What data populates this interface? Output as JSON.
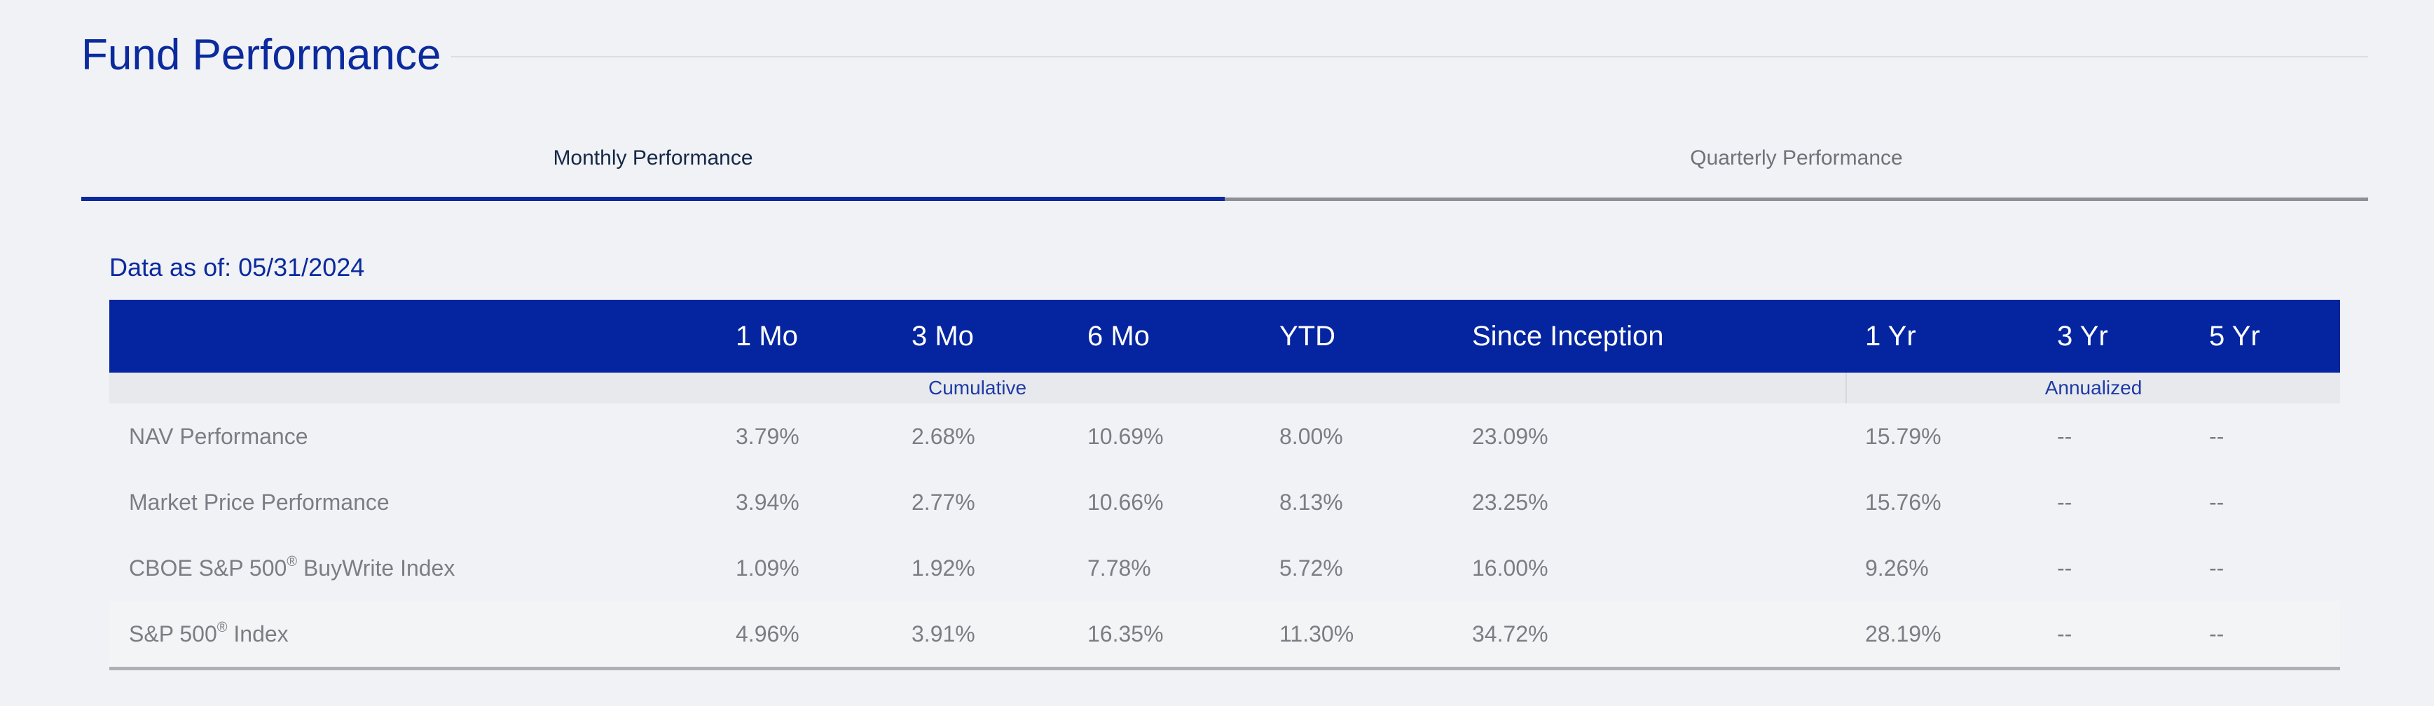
{
  "title": "Fund Performance",
  "tabs": [
    {
      "label": "Monthly Performance",
      "active": true
    },
    {
      "label": "Quarterly Performance",
      "active": false
    }
  ],
  "as_of": "Data as of: 05/31/2024",
  "table": {
    "columns": [
      "",
      "1 Mo",
      "3 Mo",
      "6 Mo",
      "YTD",
      "Since Inception",
      "1 Yr",
      "3 Yr",
      "5 Yr"
    ],
    "groups": {
      "cumulative": "Cumulative",
      "annualized": "Annualized"
    },
    "rows": [
      {
        "name": "NAV Performance",
        "sup": "",
        "suffix": "",
        "values": [
          "3.79%",
          "2.68%",
          "10.69%",
          "8.00%",
          "23.09%",
          "15.79%",
          "--",
          "--"
        ]
      },
      {
        "name": "Market Price Performance",
        "sup": "",
        "suffix": "",
        "values": [
          "3.94%",
          "2.77%",
          "10.66%",
          "8.13%",
          "23.25%",
          "15.76%",
          "--",
          "--"
        ]
      },
      {
        "name": "CBOE S&P 500",
        "sup": "®",
        "suffix": " BuyWrite Index",
        "values": [
          "1.09%",
          "1.92%",
          "7.78%",
          "5.72%",
          "16.00%",
          "9.26%",
          "--",
          "--"
        ]
      },
      {
        "name": "S&P 500",
        "sup": "®",
        "suffix": " Index",
        "values": [
          "4.96%",
          "3.91%",
          "16.35%",
          "11.30%",
          "34.72%",
          "28.19%",
          "--",
          "--"
        ]
      }
    ]
  },
  "colors": {
    "brand_blue": "#04259f",
    "title_blue": "#0a2a9e",
    "muted_text": "#7a7e84"
  }
}
